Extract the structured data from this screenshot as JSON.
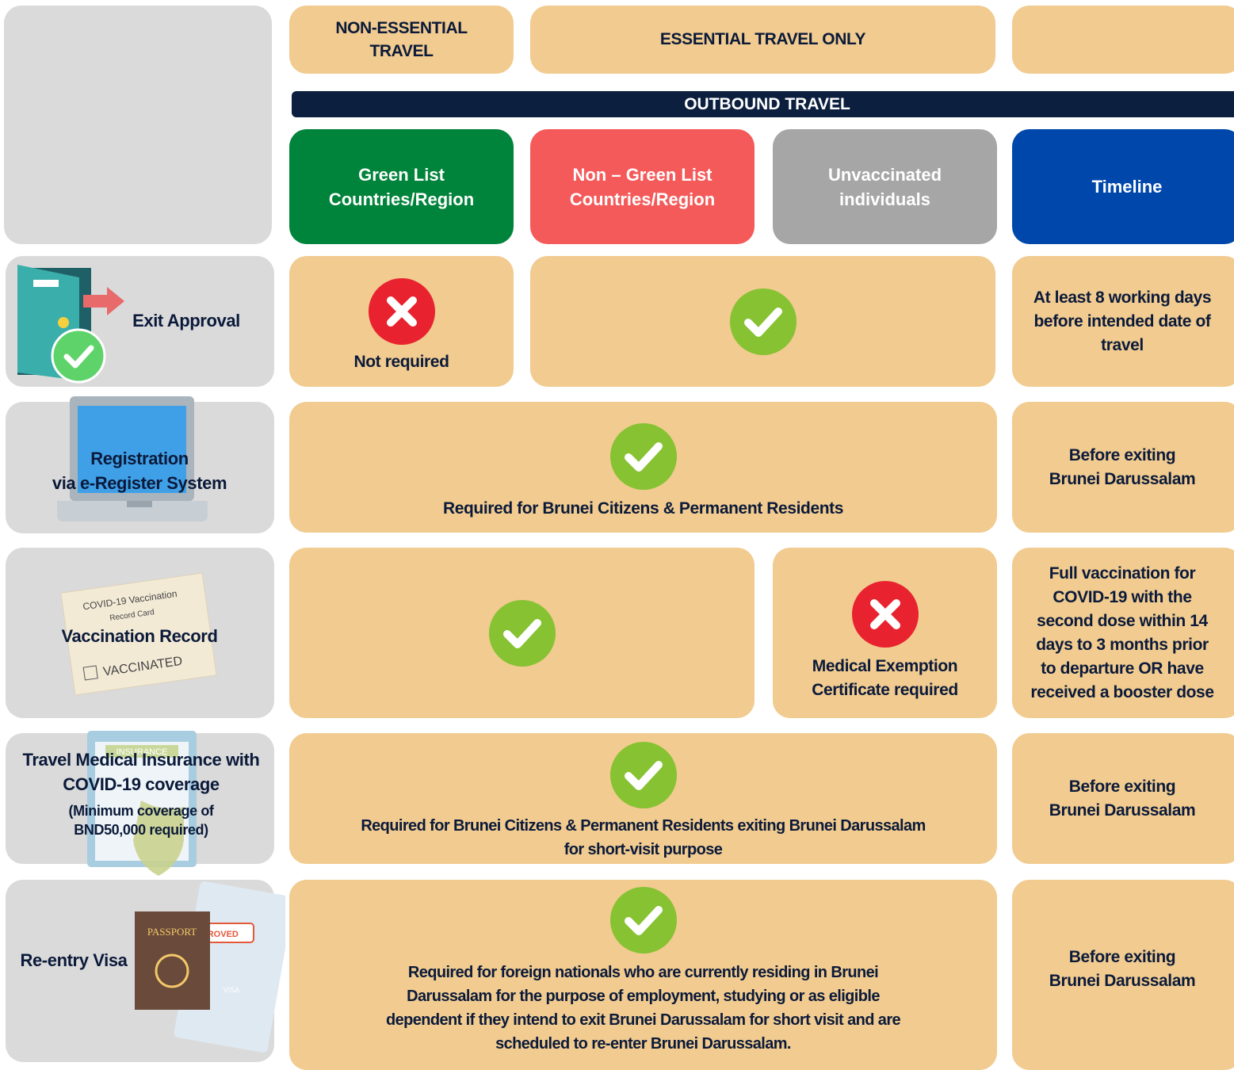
{
  "header": {
    "non_essential": [
      "NON-ESSENTIAL",
      "TRAVEL"
    ],
    "essential": "ESSENTIAL TRAVEL ONLY",
    "outbound": "OUTBOUND TRAVEL"
  },
  "columns": [
    [
      "Green List",
      "Countries/Region"
    ],
    [
      "Non – Green List",
      "Countries/Region"
    ],
    [
      "Unvaccinated",
      "individuals"
    ],
    [
      "Timeline"
    ]
  ],
  "rows": [
    {
      "label": [
        "Exit Approval"
      ],
      "status": "Not required",
      "timeline": [
        "At least 8 working days",
        "before intended date of",
        "travel"
      ]
    },
    {
      "label": [
        "Registration",
        "via e-Register System"
      ],
      "requirement": [
        "Required for Brunei Citizens & Permanent Residents"
      ],
      "timeline": [
        "Before exiting",
        "Brunei Darussalam"
      ]
    },
    {
      "label": [
        "Vaccination Record"
      ],
      "exemption": [
        "Medical Exemption",
        "Certificate required"
      ],
      "timeline": [
        "Full vaccination for",
        "COVID-19 with the",
        "second dose within 14",
        "days to 3 months prior",
        "to departure OR have",
        "received a booster dose"
      ]
    },
    {
      "label": [
        "Travel Medical Insurance with",
        "COVID-19 coverage"
      ],
      "note": [
        "(Minimum coverage of",
        "BND50,000 required)"
      ],
      "requirement": [
        "Required for Brunei Citizens & Permanent Residents exiting Brunei Darussalam",
        "for short-visit purpose"
      ],
      "timeline": [
        "Before exiting",
        "Brunei Darussalam"
      ]
    },
    {
      "label": [
        "Re-entry Visa"
      ],
      "requirement": [
        "Required for foreign nationals who are currently residing in Brunei",
        "Darussalam for the purpose of employment, studying or as eligible",
        "dependent if they intend to exit Brunei Darussalam for short visit and are",
        "scheduled to re-enter Brunei Darussalam."
      ],
      "timeline": [
        "Before exiting",
        "Brunei Darussalam"
      ]
    }
  ],
  "icons": {
    "vaccination_card": [
      "COVID-19 Vaccination",
      "Record Card",
      "VACCINATED"
    ],
    "insurance": "INSURANCE",
    "passport": "PASSPORT",
    "approved": "APPROVED",
    "visa": "VISA"
  }
}
